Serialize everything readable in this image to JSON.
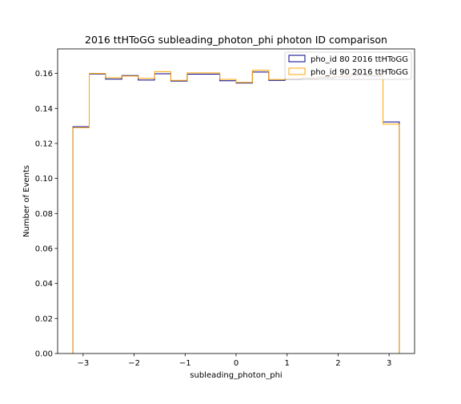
{
  "chart_data": {
    "type": "line",
    "drawstyle": "steps",
    "title": "2016 ttHToGG subleading_photon_phi photon ID comparison",
    "xlabel": "subleading_photon_phi",
    "ylabel": "Number of Events",
    "xlim": [
      -3.5,
      3.5
    ],
    "ylim": [
      0.0,
      0.174
    ],
    "xticks": [
      -3,
      -2,
      -1,
      0,
      1,
      2,
      3
    ],
    "xtick_labels": [
      "−3",
      "−2",
      "−1",
      "0",
      "1",
      "2",
      "3"
    ],
    "yticks": [
      0.0,
      0.02,
      0.04,
      0.06,
      0.08,
      0.1,
      0.12,
      0.14,
      0.16
    ],
    "ytick_labels": [
      "0.00",
      "0.02",
      "0.04",
      "0.06",
      "0.08",
      "0.10",
      "0.12",
      "0.14",
      "0.16"
    ],
    "grid": false,
    "legend_position": "top-right",
    "bin_edges": [
      -3.2,
      -2.88,
      -2.56,
      -2.24,
      -1.92,
      -1.6,
      -1.28,
      -0.96,
      -0.64,
      -0.32,
      0.0,
      0.32,
      0.64,
      0.96,
      1.28,
      1.6,
      1.92,
      2.24,
      2.56,
      2.88,
      3.2
    ],
    "series": [
      {
        "name": "pho_id 80 2016 ttHToGG",
        "color": "#00008b",
        "values": [
          0.1295,
          0.1597,
          0.1567,
          0.1588,
          0.1562,
          0.1598,
          0.1556,
          0.1596,
          0.1596,
          0.1558,
          0.1545,
          0.1608,
          0.156,
          0.1566,
          0.157,
          0.1575,
          0.158,
          0.159,
          0.1585,
          0.1323
        ]
      },
      {
        "name": "pho_id 90 2016 ttHToGG",
        "color": "#ffa500",
        "values": [
          0.129,
          0.16,
          0.1575,
          0.1585,
          0.1572,
          0.161,
          0.156,
          0.1603,
          0.1603,
          0.1566,
          0.1548,
          0.1618,
          0.1565,
          0.1572,
          0.1575,
          0.158,
          0.1585,
          0.1595,
          0.159,
          0.131
        ]
      }
    ]
  }
}
